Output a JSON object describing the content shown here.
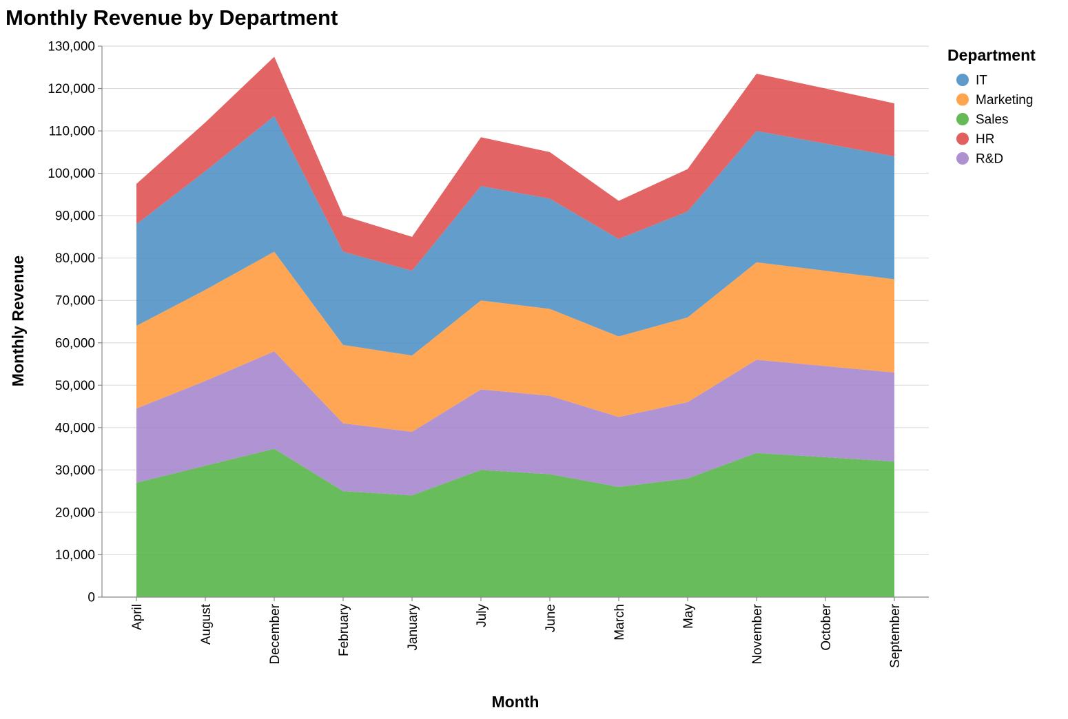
{
  "chart_data": {
    "type": "area",
    "stacked": true,
    "title": "Monthly Revenue by Department",
    "xlabel": "Month",
    "ylabel": "Monthly Revenue",
    "ylim": [
      0,
      130000
    ],
    "yticks": [
      0,
      10000,
      20000,
      30000,
      40000,
      50000,
      60000,
      70000,
      80000,
      90000,
      100000,
      110000,
      120000,
      130000
    ],
    "grid": true,
    "legend_title": "Department",
    "legend_position": "right",
    "categories": [
      "April",
      "August",
      "December",
      "February",
      "January",
      "July",
      "June",
      "March",
      "May",
      "November",
      "October",
      "September"
    ],
    "stack_order": [
      "Sales",
      "R&D",
      "Marketing",
      "IT",
      "HR"
    ],
    "legend_order": [
      "IT",
      "Marketing",
      "Sales",
      "HR",
      "R&D"
    ],
    "series": [
      {
        "name": "Sales",
        "color": "#54b345",
        "values": [
          27000,
          31000,
          35000,
          25000,
          24000,
          30000,
          29000,
          26000,
          28000,
          34000,
          33000,
          32000
        ]
      },
      {
        "name": "R&D",
        "color": "#a584cc",
        "values": [
          17500,
          20000,
          23000,
          16000,
          15000,
          19000,
          18500,
          16500,
          18000,
          22000,
          21500,
          21000
        ]
      },
      {
        "name": "Marketing",
        "color": "#ff9a3c",
        "values": [
          19500,
          21500,
          23500,
          18500,
          18000,
          21000,
          20500,
          19000,
          20000,
          23000,
          22500,
          22000
        ]
      },
      {
        "name": "IT",
        "color": "#4c8fc4",
        "values": [
          24000,
          28000,
          32000,
          22000,
          20000,
          27000,
          26000,
          23000,
          25000,
          31000,
          30000,
          29000
        ]
      },
      {
        "name": "HR",
        "color": "#df4e4f",
        "values": [
          9500,
          11500,
          14000,
          8500,
          8000,
          11500,
          11000,
          9000,
          10000,
          13500,
          13000,
          12500
        ]
      }
    ]
  }
}
